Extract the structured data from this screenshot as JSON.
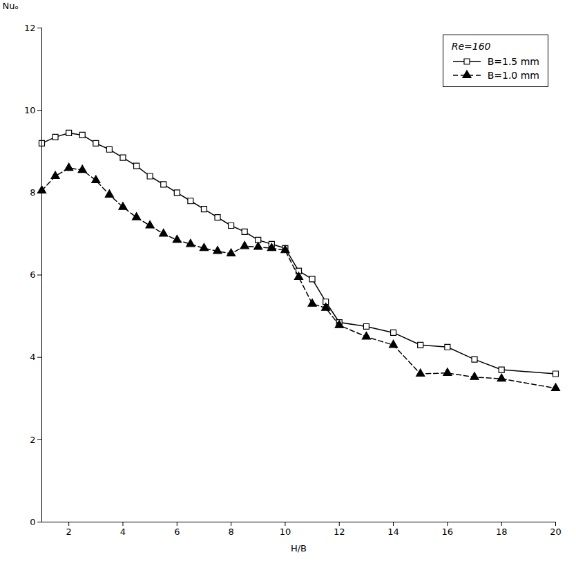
{
  "chart_data": {
    "type": "line",
    "xlabel": "H/B",
    "ylabel": "Nuₒ",
    "legend_title": "Re=160",
    "legend": "upper right",
    "grid": false,
    "xlim": [
      1,
      20
    ],
    "ylim": [
      0,
      12
    ],
    "xticks": [
      2,
      4,
      6,
      8,
      10,
      12,
      14,
      16,
      18,
      20
    ],
    "yticks": [
      0,
      2,
      4,
      6,
      8,
      10,
      12
    ],
    "x": [
      1,
      1.5,
      2,
      2.5,
      3,
      3.5,
      4,
      4.5,
      5,
      5.5,
      6,
      6.5,
      7,
      7.5,
      8,
      8.5,
      9,
      9.5,
      10,
      10.5,
      11,
      11.5,
      12,
      13,
      14,
      15,
      16,
      17,
      18,
      20
    ],
    "series": [
      {
        "name": "B=1.5 mm",
        "color": "#000000",
        "marker": "square",
        "line_style": "solid",
        "values": [
          9.2,
          9.35,
          9.45,
          9.4,
          9.2,
          9.05,
          8.85,
          8.65,
          8.4,
          8.2,
          8.0,
          7.8,
          7.6,
          7.4,
          7.2,
          7.05,
          6.85,
          6.75,
          6.65,
          6.1,
          5.9,
          5.35,
          4.85,
          4.75,
          4.6,
          4.3,
          4.25,
          3.95,
          3.7,
          3.6
        ]
      },
      {
        "name": "B=1.0 mm",
        "color": "#000000",
        "marker": "triangle",
        "line_style": "dashed",
        "values": [
          8.05,
          8.4,
          8.6,
          8.55,
          8.3,
          7.95,
          7.65,
          7.4,
          7.2,
          7.0,
          6.85,
          6.75,
          6.65,
          6.58,
          6.52,
          6.7,
          6.68,
          6.65,
          6.6,
          5.95,
          5.3,
          5.2,
          4.78,
          4.5,
          4.3,
          3.6,
          3.62,
          3.52,
          3.48,
          3.25
        ]
      }
    ]
  }
}
